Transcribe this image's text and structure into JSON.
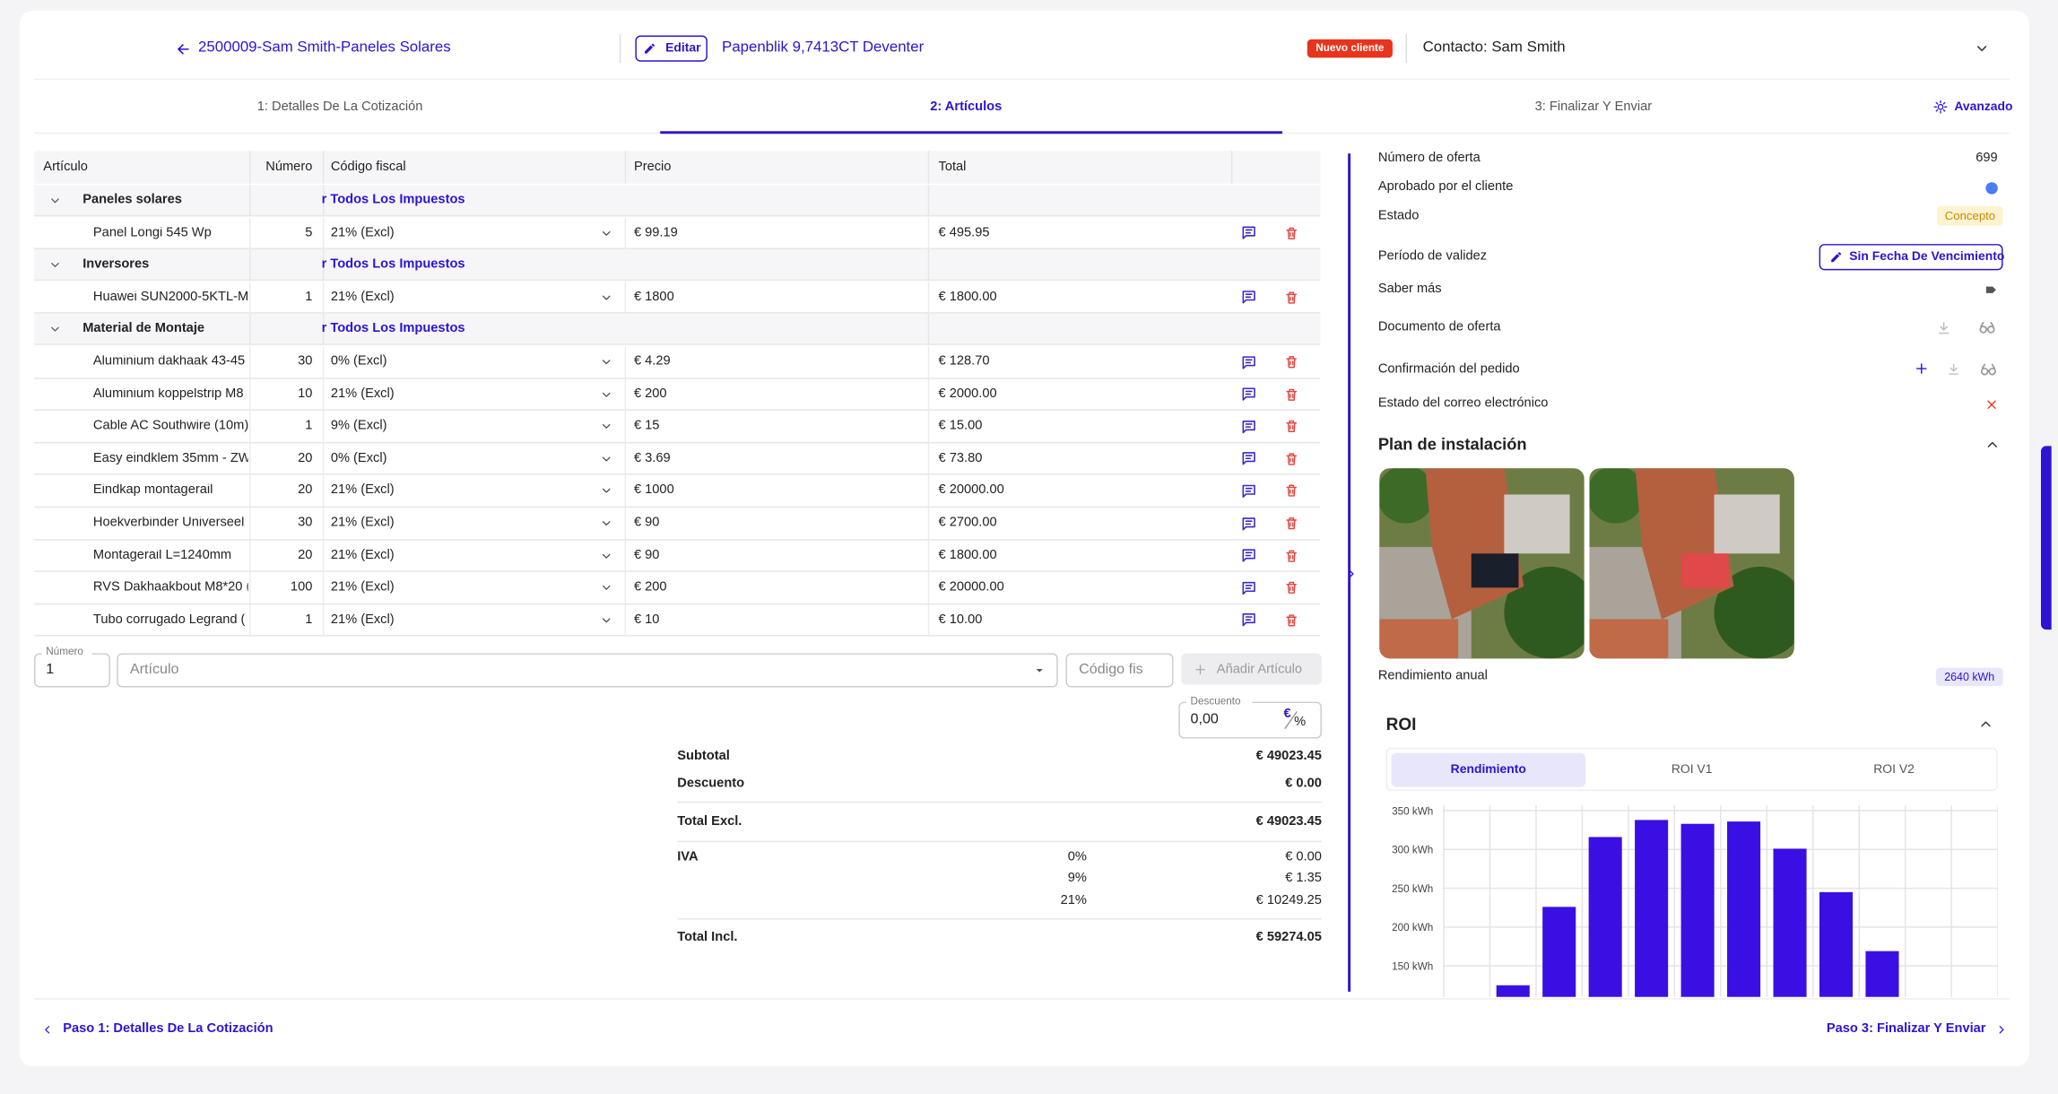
{
  "header": {
    "back_link": "2500009-Sam Smith-Paneles Solares",
    "edit": "Editar",
    "address": "Papenblik 9,7413CT Deventer",
    "badge": "Nuevo cliente",
    "contact": "Contacto: Sam Smith"
  },
  "tabs": {
    "items": [
      "1: Detalles De La Cotización",
      "2: Artículos",
      "3: Finalizar Y Enviar"
    ],
    "advanced": "Avanzado"
  },
  "table": {
    "headers": [
      "Artículo",
      "Número",
      "Código fiscal",
      "Precio",
      "Total"
    ],
    "groups": [
      {
        "name": "Paneles solares",
        "tax_link": "r Todos Los Impuestos",
        "rows": [
          [
            "Panel Longi 545 Wp",
            5,
            "21% (Excl)",
            "€ 99.19",
            "€ 495.95"
          ]
        ]
      },
      {
        "name": "Inversores",
        "tax_link": "r Todos Los Impuestos",
        "rows": [
          [
            "Huawei SUN2000-5KTL-M",
            1,
            "21% (Excl)",
            "€ 1800",
            "€ 1800.00"
          ]
        ]
      },
      {
        "name": "Material de Montaje",
        "tax_link": "r Todos Los Impuestos",
        "rows": [
          [
            "Aluminium dakhaak 43-45",
            30,
            "0% (Excl)",
            "€ 4.29",
            "€ 128.70"
          ],
          [
            "Aluminium koppelstrip M8",
            10,
            "21% (Excl)",
            "€ 200",
            "€ 2000.00"
          ],
          [
            "Cable AC Southwire (10m)",
            1,
            "9% (Excl)",
            "€ 15",
            "€ 15.00"
          ],
          [
            "Easy eindklem 35mm - ZW",
            20,
            "0% (Excl)",
            "€ 3.69",
            "€ 73.80"
          ],
          [
            "Eindkap montagerail",
            20,
            "21% (Excl)",
            "€ 1000",
            "€ 20000.00"
          ],
          [
            "Hoekverbinder Universeel",
            30,
            "21% (Excl)",
            "€ 90",
            "€ 2700.00"
          ],
          [
            "Montagerail L=1240mm",
            20,
            "21% (Excl)",
            "€ 90",
            "€ 1800.00"
          ],
          [
            "RVS Dakhaakbout M8*20 (",
            100,
            "21% (Excl)",
            "€ 200",
            "€ 20000.00"
          ],
          [
            "Tubo corrugado Legrand (",
            1,
            "21% (Excl)",
            "€ 10",
            "€ 10.00"
          ]
        ]
      }
    ]
  },
  "add_form": {
    "number_label": "Número",
    "number_value": "1",
    "article_placeholder": "Artículo",
    "tax_placeholder": "Código fis",
    "add_button": "Añadir Artículo",
    "discount_label": "Descuento",
    "discount_value": "0,00",
    "euro": "€",
    "percent": "%"
  },
  "totals": {
    "rows": [
      {
        "label": "Subtotal",
        "value": "€ 49023.45"
      },
      {
        "label": "Descuento",
        "value": "€ 0.00"
      },
      {
        "label": "Total Excl.",
        "value": "€ 49023.45"
      }
    ],
    "vat_label": "IVA",
    "vat": [
      {
        "rate": "0%",
        "value": "€ 0.00"
      },
      {
        "rate": "9%",
        "value": "€ 1.35"
      },
      {
        "rate": "21%",
        "value": "€ 10249.25"
      }
    ],
    "total_incl": {
      "label": "Total Incl.",
      "value": "€ 59274.05"
    }
  },
  "side": {
    "offer_number_label": "Número de oferta",
    "offer_number": "699",
    "approved_label": "Aprobado por el cliente",
    "status_label": "Estado",
    "status": "Concepto",
    "validity_label": "Período de validez",
    "validity_button": "Sin Fecha De Vencimiento",
    "more_label": "Saber más",
    "document_label": "Documento de oferta",
    "confirmation_label": "Confirmación del pedido",
    "email_label": "Estado del correo electrónico",
    "plan_title": "Plan de instalación",
    "annual_label": "Rendimiento anual",
    "annual_value": "2640 kWh",
    "roi_title": "ROI",
    "roi_tabs": [
      "Rendimiento",
      "ROI V1",
      "ROI V2"
    ]
  },
  "roi_chart": {
    "type": "bar",
    "categories": [
      null,
      null,
      null,
      null,
      null,
      null,
      null,
      null,
      null,
      null,
      null,
      null
    ],
    "values": [
      null,
      125,
      226,
      316,
      338,
      333,
      336,
      301,
      245,
      169,
      null,
      null
    ],
    "color": "#3a0fe4",
    "ylim": [
      110,
      350
    ],
    "yticks": [
      {
        "value": 350,
        "label": "350 kWh"
      },
      {
        "value": 300,
        "label": "300 kWh"
      },
      {
        "value": 250,
        "label": "250 kWh"
      },
      {
        "value": 200,
        "label": "200 kWh"
      },
      {
        "value": 150,
        "label": "150 kWh"
      }
    ],
    "grid": true
  },
  "footer": {
    "prev": "Paso 1: Detalles De La Cotización",
    "next": "Paso 3: Finalizar Y Enviar"
  }
}
